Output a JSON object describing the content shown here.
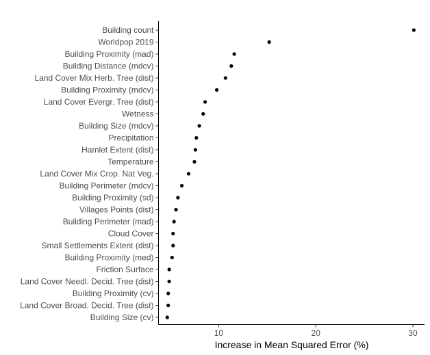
{
  "chart_data": {
    "type": "scatter",
    "title": "",
    "xlabel": "Increase in Mean Squared Error (%)",
    "ylabel": "",
    "xlim": [
      3.8,
      31.2
    ],
    "xticks": [
      10,
      20,
      30
    ],
    "grid": false,
    "legend": "none",
    "point_color": "#000000",
    "categories": [
      "Building count",
      "Worldpop 2019",
      "Building Proximity (mad)",
      "Building Distance (mdcv)",
      "Land Cover Mix Herb. Tree (dist)",
      "Building Proximity (mdcv)",
      "Land Cover Evergr. Tree (dist)",
      "Wetness",
      "Building Size (mdcv)",
      "Precipitation",
      "Hamlet Extent (dist)",
      "Temperature",
      "Land Cover Mix Crop. Nat Veg.",
      "Building Perimeter (mdcv)",
      "Building Proximity (sd)",
      "Villages Points (dist)",
      "Building Perimeter (mad)",
      "Cloud Cover",
      "Small Settlements Extent (dist)",
      "Building Proximity (med)",
      "Friction Surface",
      "Land Cover Needl. Decid. Tree (dist)",
      "Building Proximity (cv)",
      "Land Cover Broad. Decid. Tree (dist)",
      "Building Size (cv)"
    ],
    "values": [
      30.1,
      15.2,
      11.6,
      11.3,
      10.7,
      9.8,
      8.6,
      8.4,
      8.0,
      7.7,
      7.6,
      7.5,
      6.9,
      6.2,
      5.8,
      5.6,
      5.4,
      5.3,
      5.3,
      5.2,
      4.9,
      4.9,
      4.8,
      4.8,
      4.7
    ]
  }
}
